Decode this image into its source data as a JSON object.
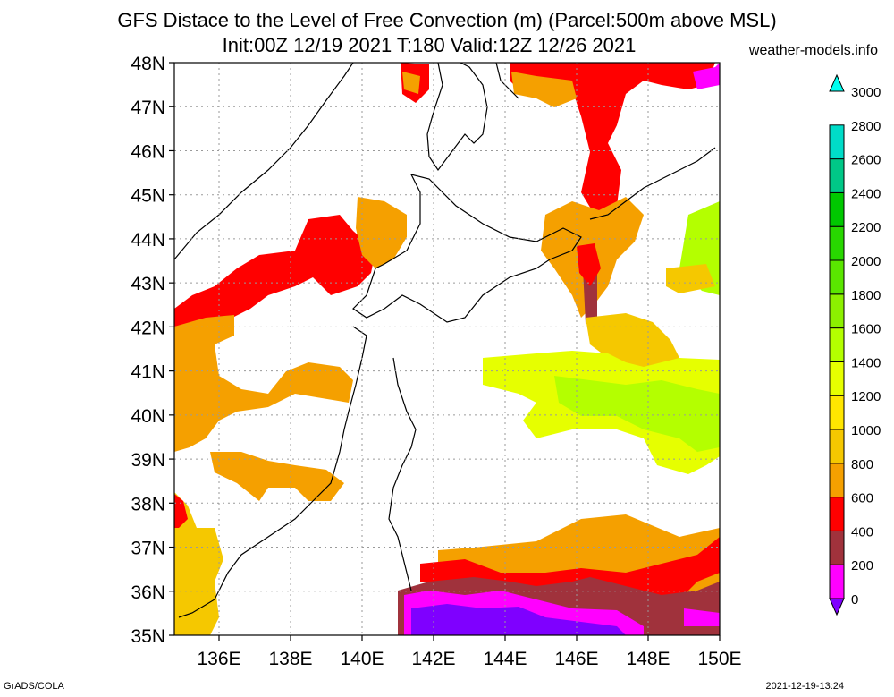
{
  "title_line1": "GFS Distace to the Level of Free Convection (m) (Parcel:500m above MSL)",
  "title_line2": "Init:00Z 12/19 2021 T:180 Valid:12Z 12/26 2021",
  "credit": "weather-models.info",
  "footer_left": "GrADS/COLA",
  "footer_right": "2021-12-19-13:24",
  "map": {
    "lat_labels": [
      "48N",
      "47N",
      "46N",
      "45N",
      "44N",
      "43N",
      "42N",
      "41N",
      "40N",
      "39N",
      "38N",
      "37N",
      "36N",
      "35N"
    ],
    "lon_labels": [
      "136E",
      "138E",
      "140E",
      "142E",
      "144E",
      "146E",
      "148E",
      "150E"
    ],
    "lat_range": [
      35,
      48
    ],
    "lon_range": [
      134.75,
      150
    ]
  },
  "colorbar": {
    "labels": [
      "3000",
      "2800",
      "2600",
      "2400",
      "2200",
      "2000",
      "1800",
      "1600",
      "1400",
      "1200",
      "1000",
      "800",
      "600",
      "400",
      "200",
      "0"
    ],
    "colors": [
      "#7f00ff",
      "#ff00ff",
      "#a0323c",
      "#ff0000",
      "#f5a000",
      "#f5c800",
      "#ffe600",
      "#e6ff00",
      "#b4ff00",
      "#8cf000",
      "#5ae600",
      "#28d700",
      "#00c800",
      "#00c887",
      "#00dcc8",
      "#00fff0"
    ]
  }
}
